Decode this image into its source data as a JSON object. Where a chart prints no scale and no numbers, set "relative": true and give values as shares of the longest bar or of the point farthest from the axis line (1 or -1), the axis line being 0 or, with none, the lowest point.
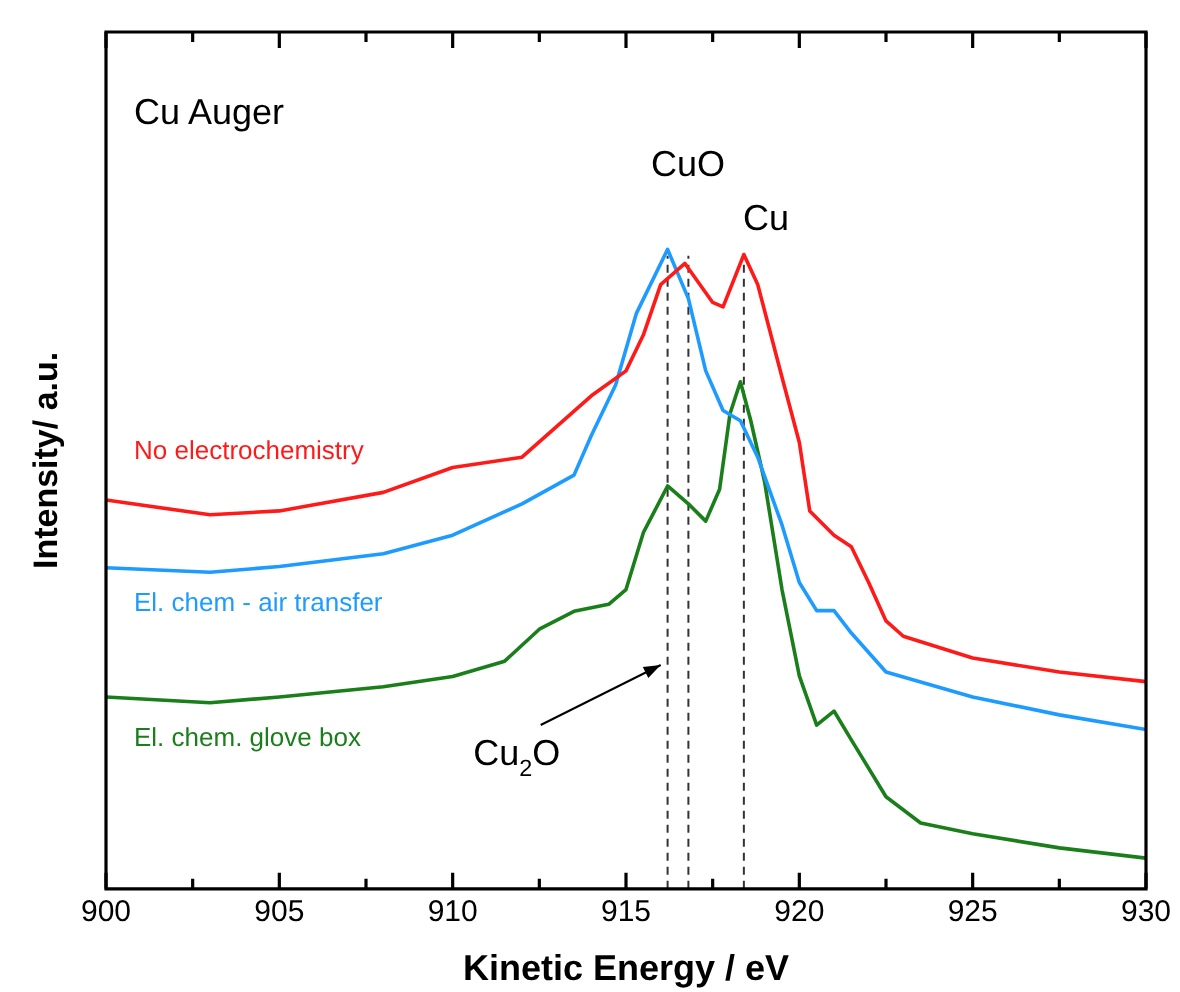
{
  "chart_data": {
    "type": "line",
    "relative": true,
    "xlabel": "Kinetic Energy / eV",
    "ylabel": "Intensity/ a.u.",
    "xlim": [
      900,
      930
    ],
    "xticks": [
      900,
      {
        "value": 902.5,
        "label": null
      },
      905,
      {
        "value": 907.5,
        "label": null
      },
      910,
      {
        "value": 912.5,
        "label": null
      },
      915,
      {
        "value": 917.5,
        "label": null
      },
      920,
      {
        "value": 922.5,
        "label": null
      },
      925,
      {
        "value": 927.5,
        "label": null
      },
      930
    ],
    "legend": false,
    "grid": false,
    "marker": "none",
    "line_style": "solid",
    "series": [
      {
        "name": "No electrochemistry",
        "color": "#ff1a1a",
        "x": [
          900,
          903,
          905,
          908,
          910,
          912,
          914,
          915,
          915.5,
          916,
          916.7,
          917.5,
          917.8,
          918.4,
          918.8,
          919.5,
          920,
          920.3,
          921,
          921.5,
          922,
          922.5,
          923,
          925,
          927.5,
          930
        ],
        "values": [
          0.608,
          0.585,
          0.591,
          0.62,
          0.659,
          0.675,
          0.771,
          0.81,
          0.866,
          0.945,
          0.978,
          0.917,
          0.91,
          0.992,
          0.945,
          0.8,
          0.698,
          0.591,
          0.553,
          0.535,
          0.479,
          0.419,
          0.395,
          0.361,
          0.339,
          0.324
        ]
      },
      {
        "name": "El. chem - air transfer",
        "color": "#1e9bff",
        "x": [
          900,
          903,
          905,
          908,
          910,
          912,
          913.5,
          914,
          914.7,
          915.3,
          916.2,
          916.8,
          917.3,
          917.8,
          918.3,
          918.8,
          919.5,
          920,
          920.5,
          921,
          921.5,
          922.5,
          925,
          927.5,
          930
        ],
        "values": [
          0.502,
          0.495,
          0.504,
          0.524,
          0.553,
          0.602,
          0.647,
          0.709,
          0.788,
          0.9,
          1.0,
          0.923,
          0.81,
          0.748,
          0.732,
          0.675,
          0.569,
          0.479,
          0.435,
          0.435,
          0.4,
          0.339,
          0.3,
          0.272,
          0.249
        ]
      },
      {
        "name": "El. chem. glove box",
        "color": "#1a7f1a",
        "x": [
          900,
          903,
          905,
          908,
          910,
          911.5,
          912.5,
          913.5,
          914.5,
          915,
          915.5,
          916.2,
          916.8,
          917.3,
          917.7,
          918,
          918.3,
          918.6,
          919,
          919.5,
          920,
          920.5,
          921,
          921.5,
          922.5,
          923.5,
          925,
          927.5,
          930
        ],
        "values": [
          0.3,
          0.291,
          0.3,
          0.316,
          0.332,
          0.356,
          0.406,
          0.434,
          0.445,
          0.468,
          0.557,
          0.63,
          0.602,
          0.575,
          0.625,
          0.743,
          0.793,
          0.732,
          0.636,
          0.468,
          0.333,
          0.256,
          0.278,
          0.233,
          0.144,
          0.103,
          0.086,
          0.064,
          0.048
        ]
      }
    ],
    "ref_lines": [
      {
        "axis": "x",
        "value": 916.2,
        "line_style": "dashed",
        "color": "#333333"
      },
      {
        "axis": "x",
        "value": 916.8,
        "line_style": "dashed",
        "color": "#333333"
      },
      {
        "axis": "x",
        "value": 918.4,
        "line_style": "dashed",
        "color": "#333333"
      }
    ],
    "annotations": [
      "Cu Auger",
      "CuO",
      "Cu",
      {
        "text": "Cu$_{2}$O",
        "x": 916.0,
        "y": 0.35
      }
    ]
  }
}
